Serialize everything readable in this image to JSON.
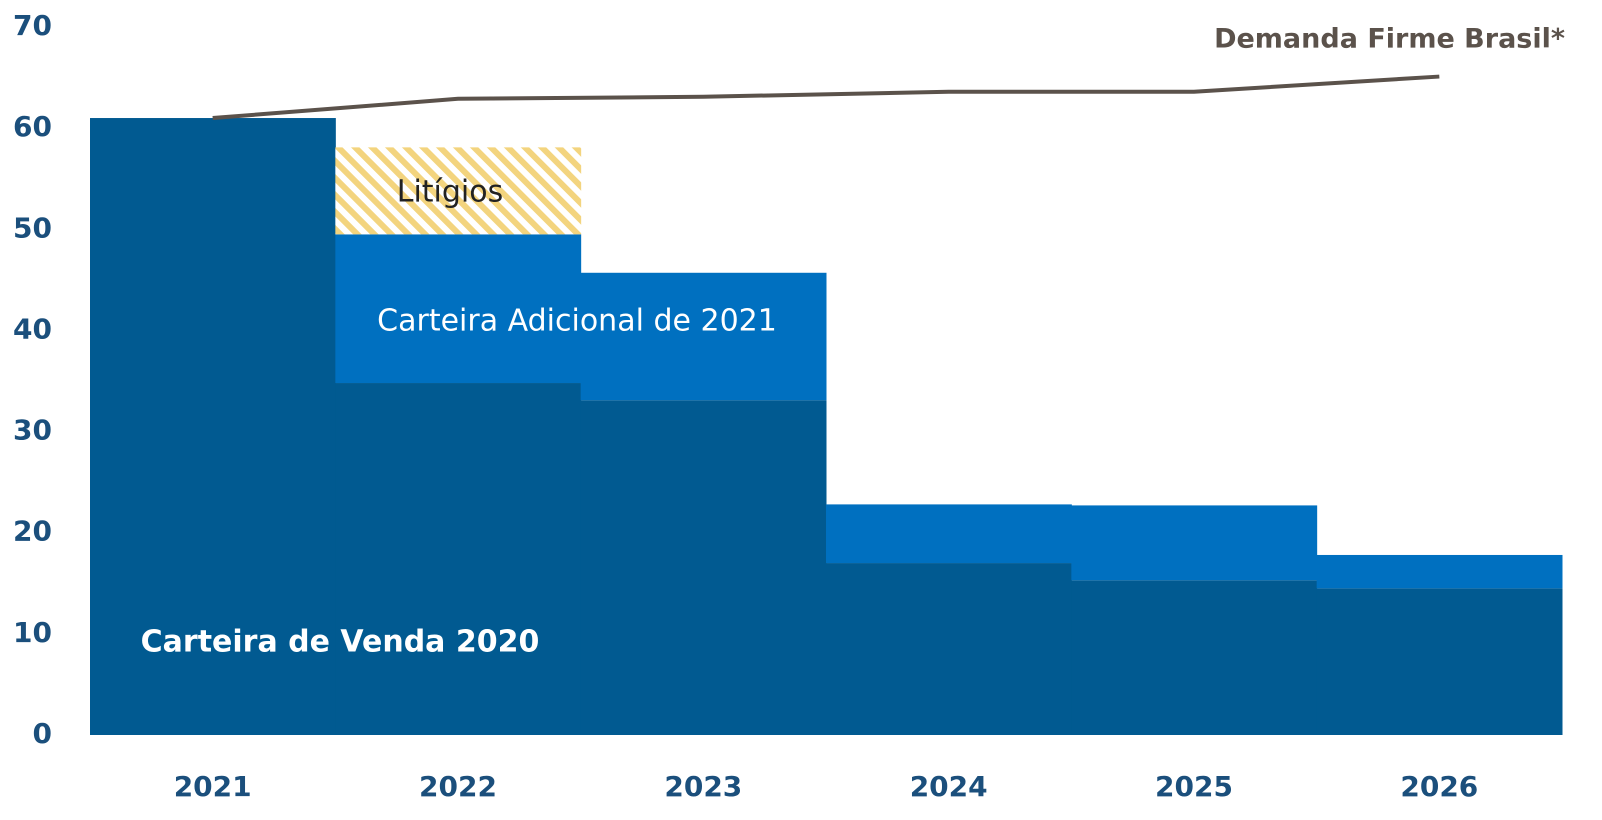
{
  "chart_data": {
    "type": "stacked_bar",
    "categories": [
      "2021",
      "2022",
      "2023",
      "2024",
      "2025",
      "2026"
    ],
    "series": [
      {
        "name": "Carteira de Venda 2020",
        "color": "#015a91",
        "values": [
          61,
          34.8,
          33.1,
          17,
          15.3,
          14.5
        ]
      },
      {
        "name": "Carteira Adicional de 2021",
        "color": "#0070c0",
        "values": [
          0,
          14.7,
          12.6,
          5.8,
          7.4,
          3.3
        ]
      },
      {
        "name": "Litígios",
        "color": "#f3d47e",
        "values": [
          0,
          8.6,
          0,
          0,
          0,
          0
        ]
      }
    ],
    "line": {
      "name": "Demanda Firme Brasil*",
      "color": "#5b524b",
      "values": [
        61,
        62.9,
        63.1,
        63.6,
        63.6,
        65.1
      ]
    },
    "ylim": [
      0,
      70
    ],
    "yticks": [
      0,
      10,
      20,
      30,
      40,
      50,
      60,
      70
    ],
    "grid": false
  }
}
